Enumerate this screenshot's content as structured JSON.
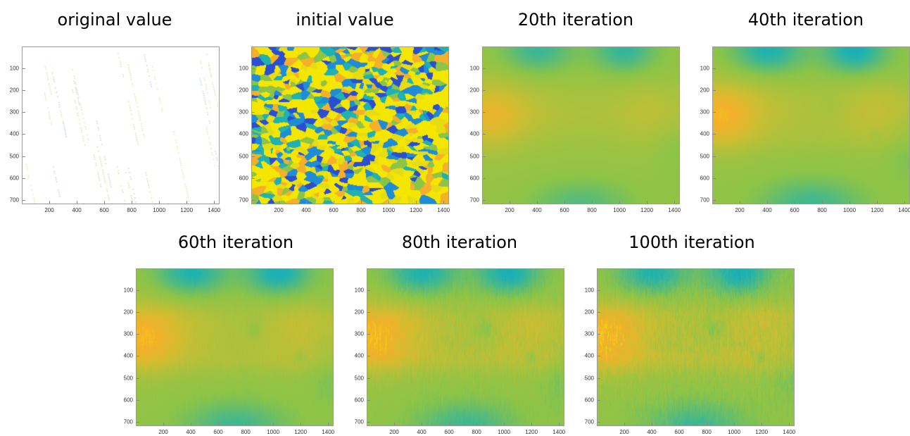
{
  "panels": [
    {
      "title": "original value",
      "style": "sparse"
    },
    {
      "title": "initial value",
      "style": "voronoi"
    },
    {
      "title": "20th iteration",
      "style": "smooth"
    },
    {
      "title": "40th iteration",
      "style": "smooth2"
    },
    {
      "title": "60th iteration",
      "style": "noisy1"
    },
    {
      "title": "80th iteration",
      "style": "noisy2"
    },
    {
      "title": "100th iteration",
      "style": "noisy3"
    }
  ],
  "y_ticks": [
    "100",
    "200",
    "300",
    "400",
    "500",
    "600",
    "700"
  ],
  "x_ticks": [
    "200",
    "400",
    "600",
    "800",
    "1000",
    "1200",
    "1400"
  ],
  "colors": {
    "background": "#ffffff",
    "teal": "#1fb2b0",
    "green": "#8cc448",
    "yellow": "#f5e600",
    "orange": "#f4b02a",
    "blue": "#2b4fd0",
    "frame": "#9a9a9a"
  }
}
